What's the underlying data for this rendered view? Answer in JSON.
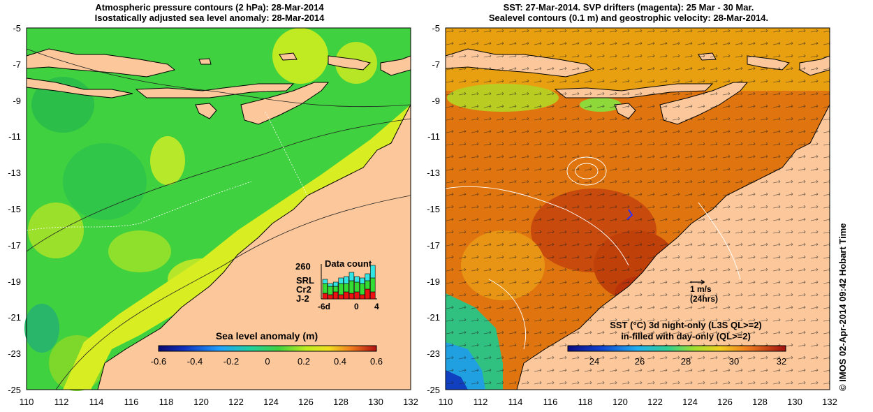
{
  "left_panel": {
    "title_line1": "Atmospheric pressure contours (2 hPa): 28-Mar-2014",
    "title_line2": "Isostatically adjusted sea level anomaly: 28-Mar-2014",
    "colorbar_label": "Sea level anomaly (m)",
    "colorbar_ticks": [
      "-0.6",
      "-0.4",
      "-0.2",
      "0",
      "0.2",
      "0.4",
      "0.6"
    ],
    "inset": {
      "title": "Data count",
      "max_label": "260",
      "x_labels": [
        "-6d",
        "0",
        "4"
      ],
      "legend": [
        {
          "label": "SRL",
          "color": "#33e6e6"
        },
        {
          "label": "Cr2",
          "color": "#33dd33"
        },
        {
          "label": "J-2",
          "color": "#ee1111"
        }
      ]
    }
  },
  "right_panel": {
    "title_line1": "SST: 27-Mar-2014. SVP drifters (magenta): 25 Mar - 30 Mar.",
    "title_line2": "Sealevel contours (0.1 m) and geostrophic velocity: 28-Mar-2014.",
    "scale_label": "1 m/s",
    "scale_sub": "(24hrs)",
    "legend_line1": "SST (°C)  3d night-only (L3S QL>=2)",
    "legend_line2": "in-filled with day-only (QL>=2)",
    "colorbar_ticks": [
      "24",
      "26",
      "28",
      "30",
      "32"
    ]
  },
  "axes": {
    "lat_labels": [
      "-5",
      "-7",
      "-9",
      "-11",
      "-13",
      "-15",
      "-17",
      "-19",
      "-21",
      "-23",
      "-25"
    ],
    "lon_labels": [
      "110",
      "112",
      "114",
      "116",
      "118",
      "120",
      "122",
      "124",
      "126",
      "128",
      "130",
      "132"
    ]
  },
  "credit": "© IMOS 02-Apr-2014 09:42 Hobart Time",
  "colors": {
    "land": "#fcc79a",
    "sla_green": "#3fd13f",
    "sla_yellow": "#d8ee22",
    "sst_orange": "#e0750f",
    "sst_red": "#b8320a"
  }
}
